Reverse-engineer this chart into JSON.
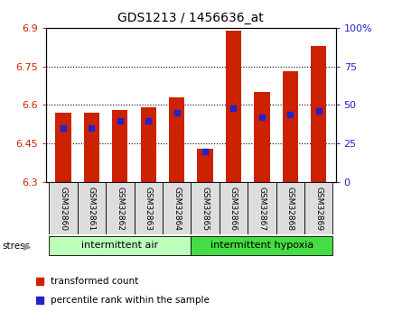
{
  "title": "GDS1213 / 1456636_at",
  "samples": [
    "GSM32860",
    "GSM32861",
    "GSM32862",
    "GSM32863",
    "GSM32864",
    "GSM32865",
    "GSM32866",
    "GSM32867",
    "GSM32868",
    "GSM32869"
  ],
  "transformed_counts": [
    6.57,
    6.57,
    6.58,
    6.59,
    6.63,
    6.43,
    6.89,
    6.65,
    6.73,
    6.83
  ],
  "percentile_ranks": [
    35,
    35,
    40,
    40,
    45,
    20,
    48,
    42,
    44,
    46
  ],
  "ylim_left": [
    6.3,
    6.9
  ],
  "ylim_right": [
    0,
    100
  ],
  "yticks_left": [
    6.3,
    6.45,
    6.6,
    6.75,
    6.9
  ],
  "yticks_right": [
    0,
    25,
    50,
    75,
    100
  ],
  "ytick_labels_left": [
    "6.3",
    "6.45",
    "6.6",
    "6.75",
    "6.9"
  ],
  "ytick_labels_right": [
    "0",
    "25",
    "50",
    "75",
    "100%"
  ],
  "group1_label": "intermittent air",
  "group2_label": "intermittent hypoxia",
  "group1_color": "#bbffbb",
  "group2_color": "#44dd44",
  "bar_color": "#cc2200",
  "dot_color": "#2222cc",
  "bar_width": 0.55,
  "bar_bottom": 6.3,
  "legend_red_label": "transformed count",
  "legend_blue_label": "percentile rank within the sample",
  "stress_label": "stress",
  "ylabel_left_color": "#cc2200",
  "ylabel_right_color": "#2222cc"
}
